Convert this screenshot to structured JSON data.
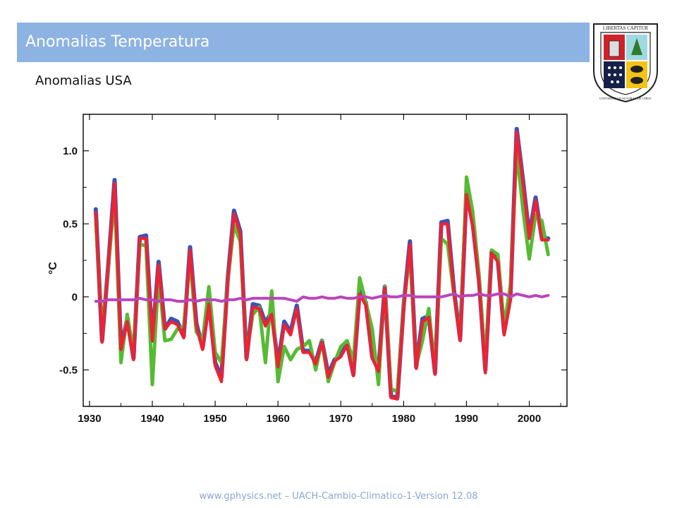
{
  "header": {
    "title": "Anomalias Temperatura"
  },
  "subtitle": "Anomalias USA",
  "logo": {
    "top_text": "LIBERTAS CAPITUR",
    "ring_text": "UNIVERSIDAD AUSTRAL DE CHILE"
  },
  "footer": "www.gphysics.net – UACH-Cambio-Climatico-1-Version 12.08",
  "colors": {
    "title_bar": "#8db3e2",
    "blue": "#3355bb",
    "green": "#55bb33",
    "red": "#ee2233",
    "magenta": "#bb44bb"
  },
  "chart_data": {
    "type": "line",
    "ylabel": "°C",
    "xlim": [
      1929,
      2006
    ],
    "ylim": [
      -0.75,
      1.25
    ],
    "x_ticks": [
      "1930",
      "1940",
      "1950",
      "1960",
      "1970",
      "1980",
      "1990",
      "2000"
    ],
    "y_ticks": [
      "1.0",
      "0.5",
      "0",
      "-0.5"
    ],
    "x": [
      1931,
      1932,
      1933,
      1934,
      1935,
      1936,
      1937,
      1938,
      1939,
      1940,
      1941,
      1942,
      1943,
      1944,
      1945,
      1946,
      1947,
      1948,
      1949,
      1950,
      1951,
      1952,
      1953,
      1954,
      1955,
      1956,
      1957,
      1958,
      1959,
      1960,
      1961,
      1962,
      1963,
      1964,
      1965,
      1966,
      1967,
      1968,
      1969,
      1970,
      1971,
      1972,
      1973,
      1974,
      1975,
      1976,
      1977,
      1978,
      1979,
      1980,
      1981,
      1982,
      1983,
      1984,
      1985,
      1986,
      1987,
      1988,
      1989,
      1990,
      1991,
      1992,
      1993,
      1994,
      1995,
      1996,
      1997,
      1998,
      1999,
      2000,
      2001,
      2002,
      2003
    ],
    "series": [
      {
        "values": [
          0.6,
          -0.3,
          0.22,
          0.8,
          -0.35,
          -0.15,
          -0.42,
          0.41,
          0.42,
          -0.3,
          0.24,
          -0.22,
          -0.15,
          -0.17,
          -0.27,
          0.34,
          -0.18,
          -0.35,
          -0.03,
          -0.45,
          -0.55,
          0.12,
          0.59,
          0.45,
          -0.42,
          -0.05,
          -0.06,
          -0.18,
          -0.1,
          -0.46,
          -0.17,
          -0.24,
          -0.06,
          -0.37,
          -0.37,
          -0.45,
          -0.3,
          -0.53,
          -0.43,
          -0.4,
          -0.32,
          -0.53,
          0.04,
          -0.04,
          -0.41,
          -0.5,
          0.07,
          -0.68,
          -0.69,
          -0.06,
          0.38,
          -0.48,
          -0.15,
          -0.13,
          -0.52,
          0.51,
          0.52,
          0.05,
          -0.29,
          0.72,
          0.5,
          0.11,
          -0.5,
          0.31,
          0.25,
          -0.24,
          0.0,
          1.15,
          0.8,
          0.42,
          0.68,
          0.4,
          0.4
        ]
      },
      {
        "values": [
          0.52,
          -0.25,
          0.2,
          0.7,
          -0.45,
          -0.12,
          -0.38,
          0.36,
          0.35,
          -0.6,
          0.15,
          -0.3,
          -0.29,
          -0.22,
          -0.2,
          0.25,
          -0.24,
          -0.3,
          0.07,
          -0.38,
          -0.45,
          0.1,
          0.49,
          0.38,
          -0.4,
          -0.12,
          -0.07,
          -0.45,
          0.04,
          -0.58,
          -0.34,
          -0.43,
          -0.36,
          -0.34,
          -0.3,
          -0.5,
          -0.3,
          -0.58,
          -0.45,
          -0.34,
          -0.3,
          -0.44,
          0.13,
          -0.04,
          -0.22,
          -0.6,
          0.07,
          -0.63,
          -0.65,
          -0.06,
          0.3,
          -0.47,
          -0.3,
          -0.08,
          -0.5,
          0.4,
          0.36,
          0.02,
          -0.29,
          0.82,
          0.58,
          0.15,
          -0.46,
          0.32,
          0.29,
          -0.2,
          0.08,
          1.0,
          0.6,
          0.26,
          0.56,
          0.52,
          0.29
        ]
      },
      {
        "values": [
          0.58,
          -0.31,
          0.22,
          0.78,
          -0.36,
          -0.17,
          -0.43,
          0.4,
          0.4,
          -0.3,
          0.22,
          -0.22,
          -0.17,
          -0.19,
          -0.28,
          0.32,
          -0.2,
          -0.36,
          -0.05,
          -0.47,
          -0.58,
          0.1,
          0.57,
          0.43,
          -0.43,
          -0.07,
          -0.08,
          -0.2,
          -0.12,
          -0.48,
          -0.19,
          -0.26,
          -0.08,
          -0.38,
          -0.38,
          -0.46,
          -0.31,
          -0.55,
          -0.44,
          -0.41,
          -0.33,
          -0.54,
          0.02,
          -0.06,
          -0.42,
          -0.51,
          0.06,
          -0.69,
          -0.7,
          -0.08,
          0.36,
          -0.49,
          -0.17,
          -0.14,
          -0.53,
          0.5,
          0.5,
          0.03,
          -0.3,
          0.7,
          0.48,
          0.1,
          -0.52,
          0.3,
          0.24,
          -0.26,
          -0.02,
          1.13,
          0.78,
          0.4,
          0.66,
          0.39,
          0.39
        ]
      },
      {
        "values": [
          -0.03,
          -0.03,
          -0.02,
          -0.02,
          -0.02,
          -0.02,
          -0.02,
          -0.01,
          -0.02,
          -0.02,
          -0.03,
          -0.02,
          -0.02,
          -0.03,
          -0.03,
          -0.02,
          -0.03,
          -0.02,
          -0.02,
          -0.02,
          -0.03,
          -0.02,
          -0.02,
          -0.01,
          -0.02,
          -0.01,
          -0.01,
          -0.01,
          -0.01,
          -0.01,
          -0.01,
          -0.02,
          -0.03,
          0.0,
          -0.01,
          -0.01,
          0.0,
          -0.01,
          -0.01,
          0.0,
          -0.01,
          -0.01,
          0.0,
          0.0,
          -0.01,
          0.0,
          0.01,
          0.0,
          0.0,
          0.01,
          0.01,
          0.0,
          0.0,
          0.0,
          0.0,
          0.0,
          0.01,
          0.02,
          0.0,
          0.01,
          0.01,
          0.02,
          0.01,
          0.01,
          0.02,
          0.02,
          0.0,
          0.02,
          0.01,
          0.0,
          0.01,
          0.0,
          0.01
        ]
      }
    ]
  }
}
